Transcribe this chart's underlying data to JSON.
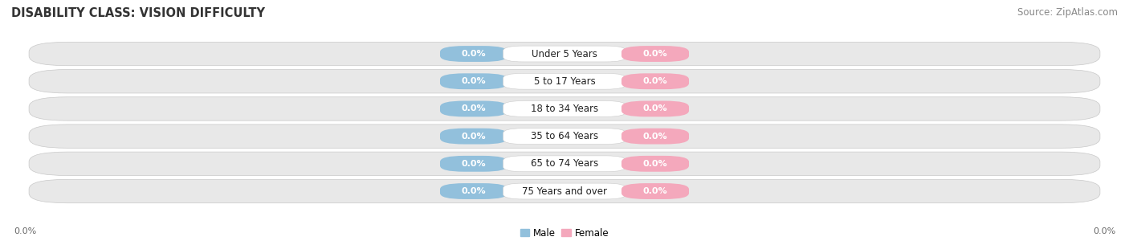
{
  "title": "DISABILITY CLASS: VISION DIFFICULTY",
  "source": "Source: ZipAtlas.com",
  "categories": [
    "Under 5 Years",
    "5 to 17 Years",
    "18 to 34 Years",
    "35 to 64 Years",
    "65 to 74 Years",
    "75 Years and over"
  ],
  "male_values": [
    0.0,
    0.0,
    0.0,
    0.0,
    0.0,
    0.0
  ],
  "female_values": [
    0.0,
    0.0,
    0.0,
    0.0,
    0.0,
    0.0
  ],
  "male_color": "#92C0DC",
  "female_color": "#F4A8BC",
  "row_bg_color": "#E8E8E8",
  "row_border_color": "#D0D0D0",
  "title_fontsize": 10.5,
  "source_fontsize": 8.5,
  "value_fontsize": 8,
  "category_fontsize": 8.5,
  "figsize": [
    14.06,
    3.05
  ],
  "dpi": 100,
  "left_label": "0.0%",
  "right_label": "0.0%",
  "legend_male": "Male",
  "legend_female": "Female"
}
